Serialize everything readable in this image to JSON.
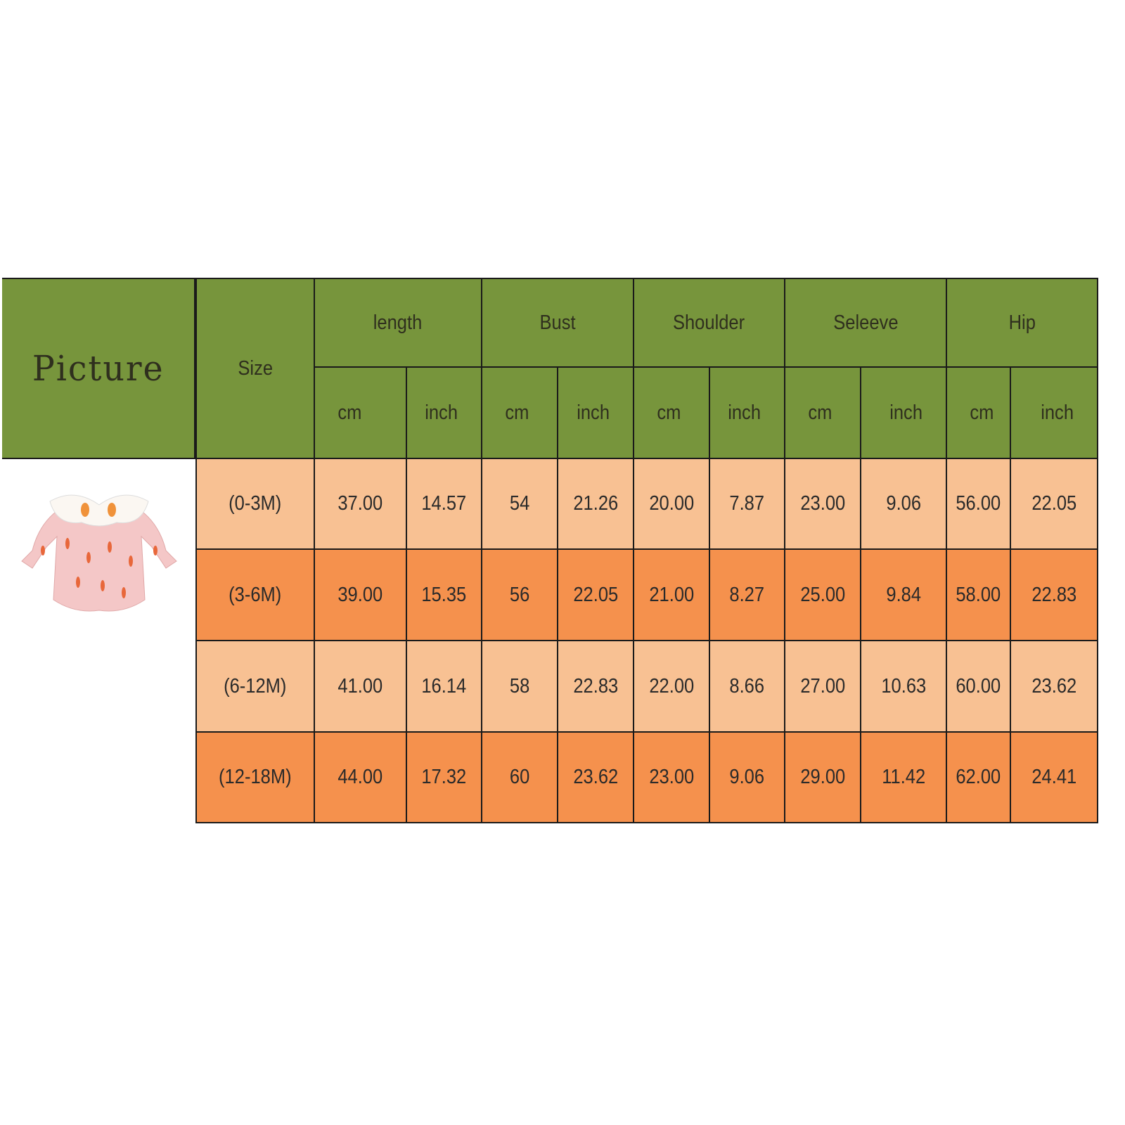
{
  "header": {
    "picture": "Picture",
    "size": "Size",
    "groups": [
      "length",
      "Bust",
      "Shoulder",
      "Seleeve",
      "Hip"
    ],
    "units": [
      "cm",
      "inch"
    ]
  },
  "product_image": "baby-romper-carrot-print",
  "colors": {
    "header": "#77953c",
    "row_light": "#f8c193",
    "row_dark": "#f5914d"
  },
  "rows": [
    {
      "size": "(0-3M)",
      "values": [
        "37.00",
        "14.57",
        "54",
        "21.26",
        "20.00",
        "7.87",
        "23.00",
        "9.06",
        "56.00",
        "22.05"
      ]
    },
    {
      "size": "(3-6M)",
      "values": [
        "39.00",
        "15.35",
        "56",
        "22.05",
        "21.00",
        "8.27",
        "25.00",
        "9.84",
        "58.00",
        "22.83"
      ]
    },
    {
      "size": "(6-12M)",
      "values": [
        "41.00",
        "16.14",
        "58",
        "22.83",
        "22.00",
        "8.66",
        "27.00",
        "10.63",
        "60.00",
        "23.62"
      ]
    },
    {
      "size": "(12-18M)",
      "values": [
        "44.00",
        "17.32",
        "60",
        "23.62",
        "23.00",
        "9.06",
        "29.00",
        "11.42",
        "62.00",
        "24.41"
      ]
    }
  ]
}
